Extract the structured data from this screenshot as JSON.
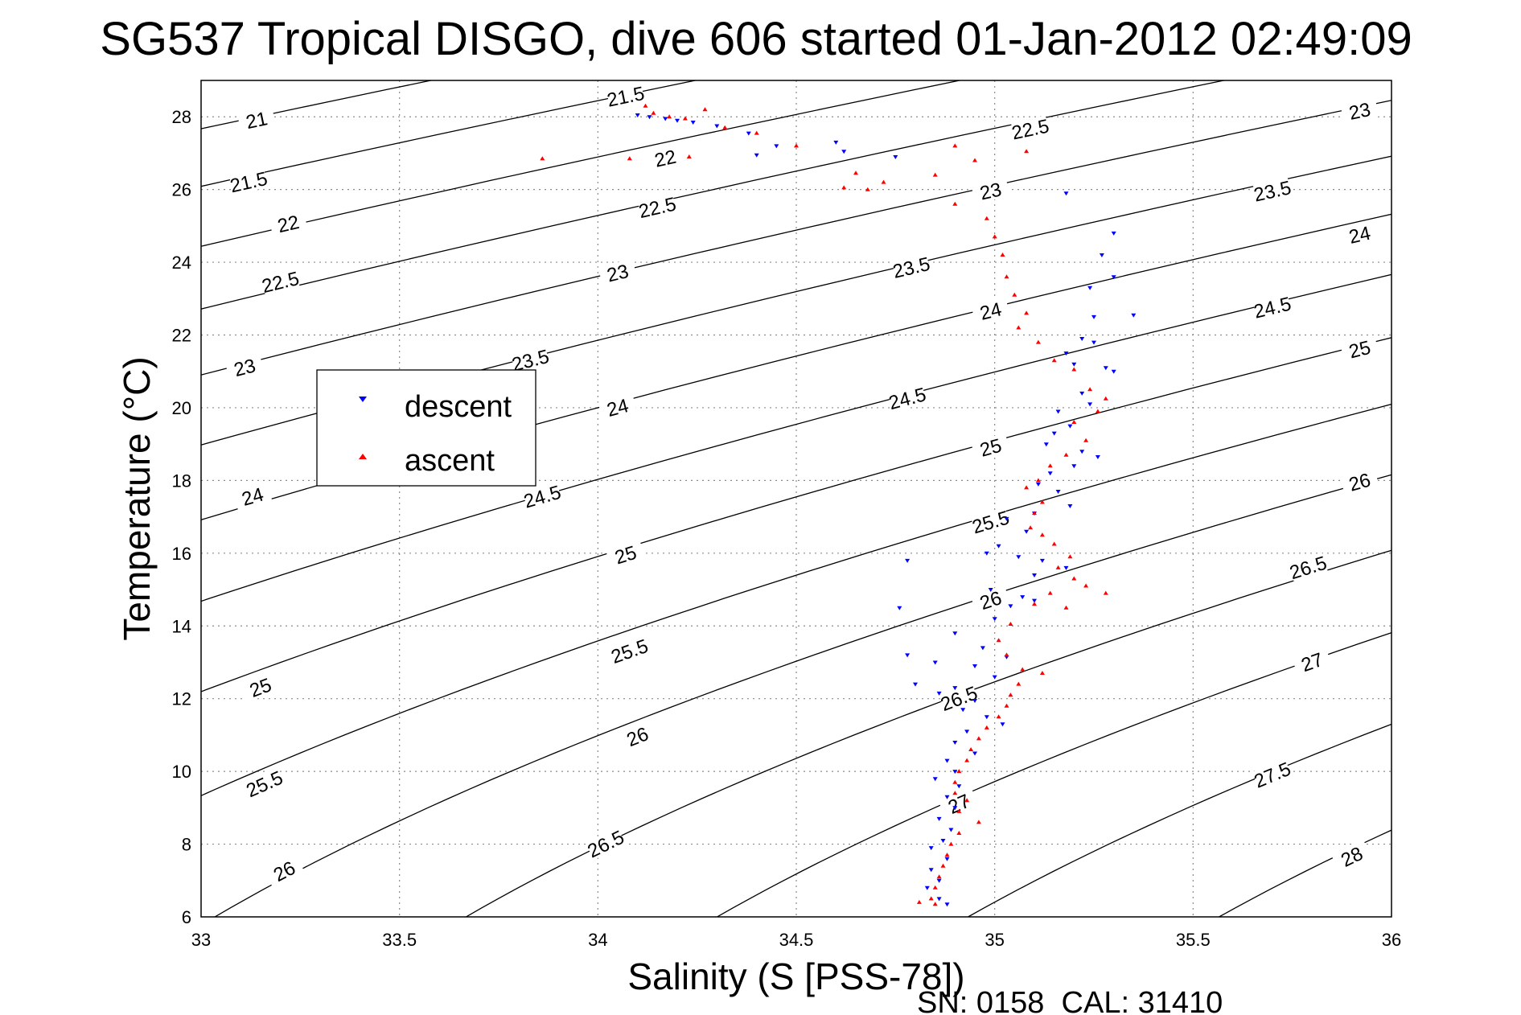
{
  "title": "SG537 Tropical DISGO, dive 606 started 01-Jan-2012 02:49:09",
  "footer": "SN: 0158  CAL: 31410",
  "chart_data": {
    "type": "scatter",
    "title": "SG537 Tropical DISGO, dive 606 started 01-Jan-2012 02:49:09",
    "xlabel": "Salinity (S [PSS-78])",
    "ylabel": "Temperature (°C)",
    "xlim": [
      33,
      36
    ],
    "ylim": [
      6,
      29
    ],
    "xticks": [
      33,
      33.5,
      34,
      34.5,
      35,
      35.5,
      36
    ],
    "yticks": [
      6,
      8,
      10,
      12,
      14,
      16,
      18,
      20,
      22,
      24,
      26,
      28
    ],
    "grid": true,
    "legend_position": "left",
    "series": [
      {
        "name": "descent",
        "color": "#0000ff",
        "marker": "triangle-down",
        "points": [
          [
            34.1,
            28.05
          ],
          [
            34.13,
            28.0
          ],
          [
            34.17,
            27.95
          ],
          [
            34.2,
            27.9
          ],
          [
            34.24,
            27.85
          ],
          [
            34.3,
            27.75
          ],
          [
            34.38,
            27.55
          ],
          [
            34.45,
            27.2
          ],
          [
            34.6,
            27.3
          ],
          [
            34.62,
            27.05
          ],
          [
            34.4,
            26.95
          ],
          [
            34.75,
            26.9
          ],
          [
            35.18,
            25.9
          ],
          [
            35.3,
            24.8
          ],
          [
            35.27,
            24.2
          ],
          [
            35.3,
            23.6
          ],
          [
            35.24,
            23.3
          ],
          [
            35.25,
            22.5
          ],
          [
            35.35,
            22.55
          ],
          [
            35.22,
            21.9
          ],
          [
            35.25,
            21.8
          ],
          [
            35.18,
            21.5
          ],
          [
            35.2,
            21.2
          ],
          [
            35.28,
            21.1
          ],
          [
            35.3,
            21.0
          ],
          [
            35.22,
            20.4
          ],
          [
            35.24,
            20.1
          ],
          [
            35.16,
            19.9
          ],
          [
            35.19,
            19.5
          ],
          [
            35.15,
            19.3
          ],
          [
            35.13,
            19.0
          ],
          [
            35.22,
            18.8
          ],
          [
            35.26,
            18.65
          ],
          [
            35.2,
            18.4
          ],
          [
            35.14,
            18.2
          ],
          [
            35.11,
            17.9
          ],
          [
            35.16,
            17.7
          ],
          [
            35.19,
            17.3
          ],
          [
            35.1,
            17.1
          ],
          [
            35.03,
            16.95
          ],
          [
            35.08,
            16.6
          ],
          [
            35.01,
            16.2
          ],
          [
            34.98,
            16.0
          ],
          [
            35.06,
            15.9
          ],
          [
            35.12,
            15.8
          ],
          [
            35.18,
            15.6
          ],
          [
            35.1,
            15.4
          ],
          [
            34.99,
            15.0
          ],
          [
            35.07,
            14.8
          ],
          [
            35.1,
            14.7
          ],
          [
            35.04,
            14.55
          ],
          [
            35.0,
            14.2
          ],
          [
            34.9,
            13.8
          ],
          [
            34.97,
            13.4
          ],
          [
            35.03,
            13.15
          ],
          [
            34.85,
            13.0
          ],
          [
            34.95,
            12.9
          ],
          [
            35.0,
            12.6
          ],
          [
            34.9,
            12.3
          ],
          [
            34.86,
            12.15
          ],
          [
            34.95,
            11.95
          ],
          [
            34.92,
            11.7
          ],
          [
            34.98,
            11.5
          ],
          [
            35.02,
            11.3
          ],
          [
            34.93,
            11.1
          ],
          [
            34.9,
            10.8
          ],
          [
            34.95,
            10.5
          ],
          [
            34.88,
            10.3
          ],
          [
            34.9,
            10.0
          ],
          [
            34.85,
            9.8
          ],
          [
            34.91,
            9.6
          ],
          [
            34.88,
            9.3
          ],
          [
            34.9,
            9.0
          ],
          [
            34.86,
            8.7
          ],
          [
            34.89,
            8.4
          ],
          [
            34.87,
            8.1
          ],
          [
            34.84,
            7.9
          ],
          [
            34.88,
            7.6
          ],
          [
            34.84,
            7.3
          ],
          [
            34.86,
            7.0
          ],
          [
            34.83,
            6.8
          ],
          [
            34.86,
            6.5
          ],
          [
            34.88,
            6.35
          ],
          [
            34.78,
            15.8
          ],
          [
            34.76,
            14.5
          ],
          [
            34.78,
            13.2
          ],
          [
            34.8,
            12.4
          ]
        ]
      },
      {
        "name": "ascent",
        "color": "#ff0000",
        "marker": "triangle-up",
        "points": [
          [
            34.12,
            28.3
          ],
          [
            34.14,
            28.1
          ],
          [
            34.18,
            28.0
          ],
          [
            34.22,
            27.95
          ],
          [
            34.27,
            28.2
          ],
          [
            34.32,
            27.7
          ],
          [
            34.4,
            27.55
          ],
          [
            34.5,
            27.2
          ],
          [
            33.86,
            26.85
          ],
          [
            34.08,
            26.85
          ],
          [
            34.23,
            26.9
          ],
          [
            34.65,
            26.45
          ],
          [
            34.72,
            26.2
          ],
          [
            34.62,
            26.05
          ],
          [
            34.68,
            26.0
          ],
          [
            34.85,
            26.4
          ],
          [
            34.9,
            25.6
          ],
          [
            34.98,
            25.2
          ],
          [
            35.0,
            24.7
          ],
          [
            35.02,
            24.2
          ],
          [
            35.03,
            23.6
          ],
          [
            35.05,
            23.1
          ],
          [
            35.08,
            22.6
          ],
          [
            35.06,
            22.2
          ],
          [
            35.11,
            21.8
          ],
          [
            35.15,
            21.3
          ],
          [
            35.2,
            21.05
          ],
          [
            35.24,
            20.5
          ],
          [
            35.28,
            20.25
          ],
          [
            35.26,
            19.9
          ],
          [
            35.2,
            19.6
          ],
          [
            35.23,
            19.1
          ],
          [
            35.18,
            18.7
          ],
          [
            35.14,
            18.4
          ],
          [
            35.11,
            18.0
          ],
          [
            35.08,
            17.8
          ],
          [
            35.12,
            17.4
          ],
          [
            35.1,
            17.1
          ],
          [
            35.09,
            16.7
          ],
          [
            35.12,
            16.5
          ],
          [
            35.15,
            16.25
          ],
          [
            35.19,
            15.9
          ],
          [
            35.16,
            15.6
          ],
          [
            35.2,
            15.3
          ],
          [
            35.23,
            15.1
          ],
          [
            35.28,
            14.9
          ],
          [
            35.14,
            14.9
          ],
          [
            35.1,
            14.6
          ],
          [
            35.18,
            14.5
          ],
          [
            35.04,
            14.05
          ],
          [
            35.01,
            13.6
          ],
          [
            35.03,
            13.2
          ],
          [
            35.07,
            12.8
          ],
          [
            35.12,
            12.7
          ],
          [
            35.06,
            12.4
          ],
          [
            35.04,
            12.1
          ],
          [
            35.03,
            11.8
          ],
          [
            35.01,
            11.5
          ],
          [
            34.98,
            11.2
          ],
          [
            34.96,
            10.9
          ],
          [
            34.94,
            10.6
          ],
          [
            34.93,
            10.3
          ],
          [
            34.91,
            10.0
          ],
          [
            34.9,
            9.7
          ],
          [
            34.9,
            9.4
          ],
          [
            34.93,
            9.2
          ],
          [
            34.91,
            8.9
          ],
          [
            34.96,
            8.6
          ],
          [
            34.91,
            8.3
          ],
          [
            34.89,
            8.0
          ],
          [
            34.88,
            7.7
          ],
          [
            34.87,
            7.4
          ],
          [
            34.86,
            7.1
          ],
          [
            34.85,
            6.8
          ],
          [
            34.84,
            6.5
          ],
          [
            34.81,
            6.4
          ],
          [
            34.85,
            6.35
          ],
          [
            34.9,
            27.2
          ],
          [
            34.95,
            26.8
          ],
          [
            35.08,
            27.05
          ]
        ]
      }
    ],
    "isopycnals": [
      21,
      21.5,
      22,
      22.5,
      23,
      23.5,
      24,
      24.5,
      25,
      25.5,
      26,
      26.5,
      27,
      27.5,
      28
    ],
    "contour_labels": [
      {
        "text": "21",
        "s": 33.14,
        "t": 27.9
      },
      {
        "text": "21.5",
        "s": 33.12,
        "t": 26.2
      },
      {
        "text": "22",
        "s": 33.22,
        "t": 25.05
      },
      {
        "text": "22.5",
        "s": 33.2,
        "t": 23.45
      },
      {
        "text": "23",
        "s": 33.11,
        "t": 21.1
      },
      {
        "text": "23.5",
        "s": 33.83,
        "t": 21.3
      },
      {
        "text": "24",
        "s": 33.13,
        "t": 17.55
      },
      {
        "text": "24",
        "s": 34.05,
        "t": 20.0
      },
      {
        "text": "24.5",
        "s": 33.86,
        "t": 17.55
      },
      {
        "text": "25",
        "s": 33.15,
        "t": 12.3
      },
      {
        "text": "25",
        "s": 34.07,
        "t": 15.95
      },
      {
        "text": "25.5",
        "s": 33.16,
        "t": 9.65
      },
      {
        "text": "25.5",
        "s": 34.08,
        "t": 13.3
      },
      {
        "text": "26",
        "s": 33.21,
        "t": 7.25
      },
      {
        "text": "26",
        "s": 34.1,
        "t": 10.95
      },
      {
        "text": "26.5",
        "s": 34.02,
        "t": 8.0
      },
      {
        "text": "21.5",
        "s": 34.07,
        "t": 28.55
      },
      {
        "text": "22",
        "s": 34.17,
        "t": 26.85
      },
      {
        "text": "22.5",
        "s": 34.15,
        "t": 25.5
      },
      {
        "text": "23",
        "s": 34.05,
        "t": 23.7
      },
      {
        "text": "23.5",
        "s": 34.79,
        "t": 23.85
      },
      {
        "text": "24",
        "s": 34.99,
        "t": 22.65
      },
      {
        "text": "24.5",
        "s": 34.78,
        "t": 20.25
      },
      {
        "text": "25",
        "s": 34.99,
        "t": 18.9
      },
      {
        "text": "25.5",
        "s": 34.99,
        "t": 16.85
      },
      {
        "text": "26",
        "s": 34.99,
        "t": 14.7
      },
      {
        "text": "26.5",
        "s": 34.91,
        "t": 12.0
      },
      {
        "text": "27",
        "s": 34.91,
        "t": 9.1
      },
      {
        "text": "22.5",
        "s": 35.09,
        "t": 27.65
      },
      {
        "text": "23",
        "s": 34.99,
        "t": 25.95
      },
      {
        "text": "23",
        "s": 35.92,
        "t": 28.15
      },
      {
        "text": "23.5",
        "s": 35.7,
        "t": 25.95
      },
      {
        "text": "24",
        "s": 35.92,
        "t": 24.75
      },
      {
        "text": "24.5",
        "s": 35.7,
        "t": 22.75
      },
      {
        "text": "25",
        "s": 35.92,
        "t": 21.6
      },
      {
        "text": "26",
        "s": 35.92,
        "t": 17.95
      },
      {
        "text": "26.5",
        "s": 35.79,
        "t": 15.6
      },
      {
        "text": "27",
        "s": 35.8,
        "t": 13.0
      },
      {
        "text": "27.5",
        "s": 35.7,
        "t": 9.9
      },
      {
        "text": "28",
        "s": 35.9,
        "t": 7.65
      }
    ]
  },
  "legend": {
    "entries": [
      {
        "label": "descent",
        "color": "#0000ff",
        "marker": "triangle-down"
      },
      {
        "label": "ascent",
        "color": "#ff0000",
        "marker": "triangle-up"
      }
    ]
  }
}
